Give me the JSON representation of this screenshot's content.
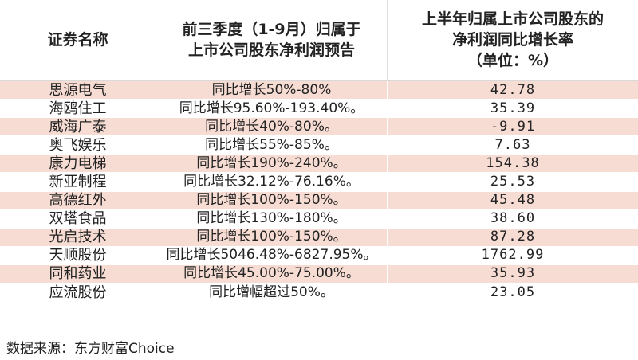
{
  "header": {
    "col1": "证券名称",
    "col2_line1": "前三季度（1-9月）归属于",
    "col2_line2": "上市公司股东净利润预告",
    "col3_line1": "上半年归属上市公司股东的",
    "col3_line2": "净利润同比增长率",
    "col3_line3": "（单位：%）"
  },
  "rows": [
    {
      "name": "思源电气",
      "forecast": "同比增长50%-80%",
      "growth": "42.78"
    },
    {
      "name": "海鸥住工",
      "forecast": "同比增长95.60%-193.40%。",
      "growth": "35.39"
    },
    {
      "name": "威海广泰",
      "forecast": "同比增长40%-80%。",
      "growth": "-9.91"
    },
    {
      "name": "奥飞娱乐",
      "forecast": "同比增长55%-85%。",
      "growth": "7.63"
    },
    {
      "name": "康力电梯",
      "forecast": "同比增长190%-240%。",
      "growth": "154.38"
    },
    {
      "name": "新亚制程",
      "forecast": "同比增长32.12%-76.16%。",
      "growth": "25.53"
    },
    {
      "name": "高德红外",
      "forecast": "同比增长100%-150%。",
      "growth": "45.48"
    },
    {
      "name": "双塔食品",
      "forecast": "同比增长130%-180%。",
      "growth": "38.60"
    },
    {
      "name": "光启技术",
      "forecast": "同比增长100%-150%。",
      "growth": "87.28"
    },
    {
      "name": "天顺股份",
      "forecast": "同比增长5046.48%-6827.95%。",
      "growth": "1762.99"
    },
    {
      "name": "同和药业",
      "forecast": "同比增长45.00%-75.00%。",
      "growth": "35.93"
    },
    {
      "name": "应流股份",
      "forecast": "同比增幅超过50%。",
      "growth": "23.05"
    }
  ],
  "source": "数据来源：东方财富Choice",
  "colors": {
    "pink_row": "#f6dcd3",
    "white_row": "#ffffff"
  }
}
